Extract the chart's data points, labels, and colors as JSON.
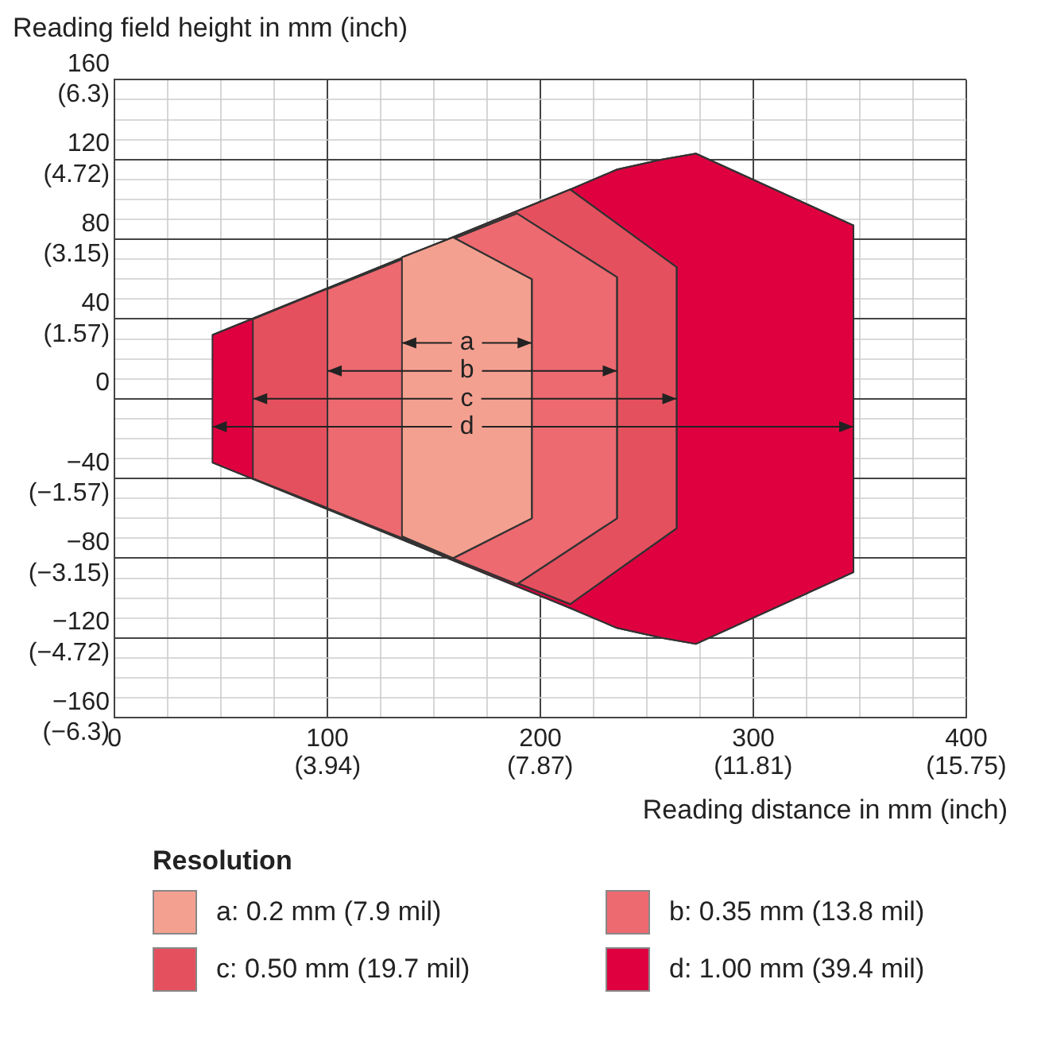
{
  "chart_data": {
    "type": "area",
    "ylabel": "Reading field height in mm (inch)",
    "xlabel": "Reading distance in mm (inch)",
    "legend_title": "Resolution",
    "legend": "bottom",
    "grid": true,
    "xlim": [
      0,
      400
    ],
    "ylim": [
      -160,
      160
    ],
    "xticks": [
      0,
      {
        "value": 25,
        "label": null
      },
      {
        "value": 50,
        "label": null
      },
      {
        "value": 75,
        "label": null
      },
      100,
      {
        "value": 125,
        "label": null
      },
      {
        "value": 150,
        "label": null
      },
      {
        "value": 175,
        "label": null
      },
      200,
      {
        "value": 225,
        "label": null
      },
      {
        "value": 250,
        "label": null
      },
      {
        "value": 275,
        "label": null
      },
      300,
      {
        "value": 325,
        "label": null
      },
      {
        "value": 350,
        "label": null
      },
      {
        "value": 375,
        "label": null
      },
      400
    ],
    "x2lim": [
      0,
      15.75
    ],
    "x2ticks": [
      {
        "value": 3.94,
        "label": "(3.94)"
      },
      {
        "value": 7.87,
        "label": "(7.87)"
      },
      {
        "value": 11.81,
        "label": "(11.81)"
      },
      {
        "value": 15.75,
        "label": "(15.75)"
      }
    ],
    "yticks": [
      {
        "value": -160,
        "label": "−160"
      },
      {
        "value": -150,
        "label": null
      },
      {
        "value": -140,
        "label": null
      },
      {
        "value": -130,
        "label": null
      },
      {
        "value": -120,
        "label": "−120"
      },
      {
        "value": -110,
        "label": null
      },
      {
        "value": -100,
        "label": null
      },
      {
        "value": -90,
        "label": null
      },
      {
        "value": -80,
        "label": "−80"
      },
      {
        "value": -70,
        "label": null
      },
      {
        "value": -60,
        "label": null
      },
      {
        "value": -50,
        "label": null
      },
      {
        "value": -40,
        "label": "−40"
      },
      {
        "value": -30,
        "label": null
      },
      {
        "value": -20,
        "label": null
      },
      {
        "value": -10,
        "label": null
      },
      0,
      {
        "value": 10,
        "label": null
      },
      {
        "value": 20,
        "label": null
      },
      {
        "value": 30,
        "label": null
      },
      40,
      {
        "value": 50,
        "label": null
      },
      {
        "value": 60,
        "label": null
      },
      {
        "value": 70,
        "label": null
      },
      80,
      {
        "value": 90,
        "label": null
      },
      {
        "value": 100,
        "label": null
      },
      {
        "value": 110,
        "label": null
      },
      120,
      {
        "value": 130,
        "label": null
      },
      {
        "value": 140,
        "label": null
      },
      {
        "value": 150,
        "label": null
      },
      160
    ],
    "y2lim": [
      -6.3,
      6.3
    ],
    "y2ticks": [
      {
        "value": -6.3,
        "label": "(−6.3)"
      },
      {
        "value": -4.72,
        "label": "(−4.72)"
      },
      {
        "value": -3.15,
        "label": "(−3.15)"
      },
      {
        "value": -1.57,
        "label": "(−1.57)"
      },
      {
        "value": 1.57,
        "label": "(1.57)"
      },
      {
        "value": 3.15,
        "label": "(3.15)"
      },
      {
        "value": 4.72,
        "label": "(4.72)"
      },
      {
        "value": 6.3,
        "label": "(6.3)"
      }
    ],
    "series": [
      {
        "name": "a: 0.2 mm (7.9 mil)",
        "color": "#f4a090",
        "x": [
          135,
          159,
          196,
          196,
          159,
          135
        ],
        "values": [
          71,
          81,
          60,
          -60,
          -80,
          -69
        ]
      },
      {
        "name": "b: 0.35 mm (13.8 mil)",
        "color": "#ec6a70",
        "x": [
          100,
          189,
          236,
          236,
          189,
          100
        ],
        "values": [
          55,
          93,
          61,
          -60,
          -93,
          -55
        ]
      },
      {
        "name": "c: 0.50 mm (19.7 mil)",
        "color": "#e5505e",
        "x": [
          65,
          214,
          264,
          264,
          214,
          65
        ],
        "values": [
          40,
          105,
          66,
          -65,
          -103,
          -40
        ]
      },
      {
        "name": "d: 1.00 mm (39.4 mil)",
        "color": "#df0040",
        "x": [
          46,
          214,
          236,
          257,
          273,
          347,
          347,
          273,
          257,
          236,
          214,
          46
        ],
        "values": [
          32,
          105,
          115,
          120,
          123,
          87,
          -87,
          -123,
          -120,
          -115,
          -105,
          -32
        ]
      }
    ],
    "annotations": [
      {
        "text": "a",
        "x": 196,
        "y": 28
      },
      {
        "text": "b",
        "x": 236,
        "y": 14
      },
      {
        "text": "c",
        "x": 264,
        "y": 0
      },
      {
        "text": "d",
        "x": 347,
        "y": -14
      }
    ]
  }
}
